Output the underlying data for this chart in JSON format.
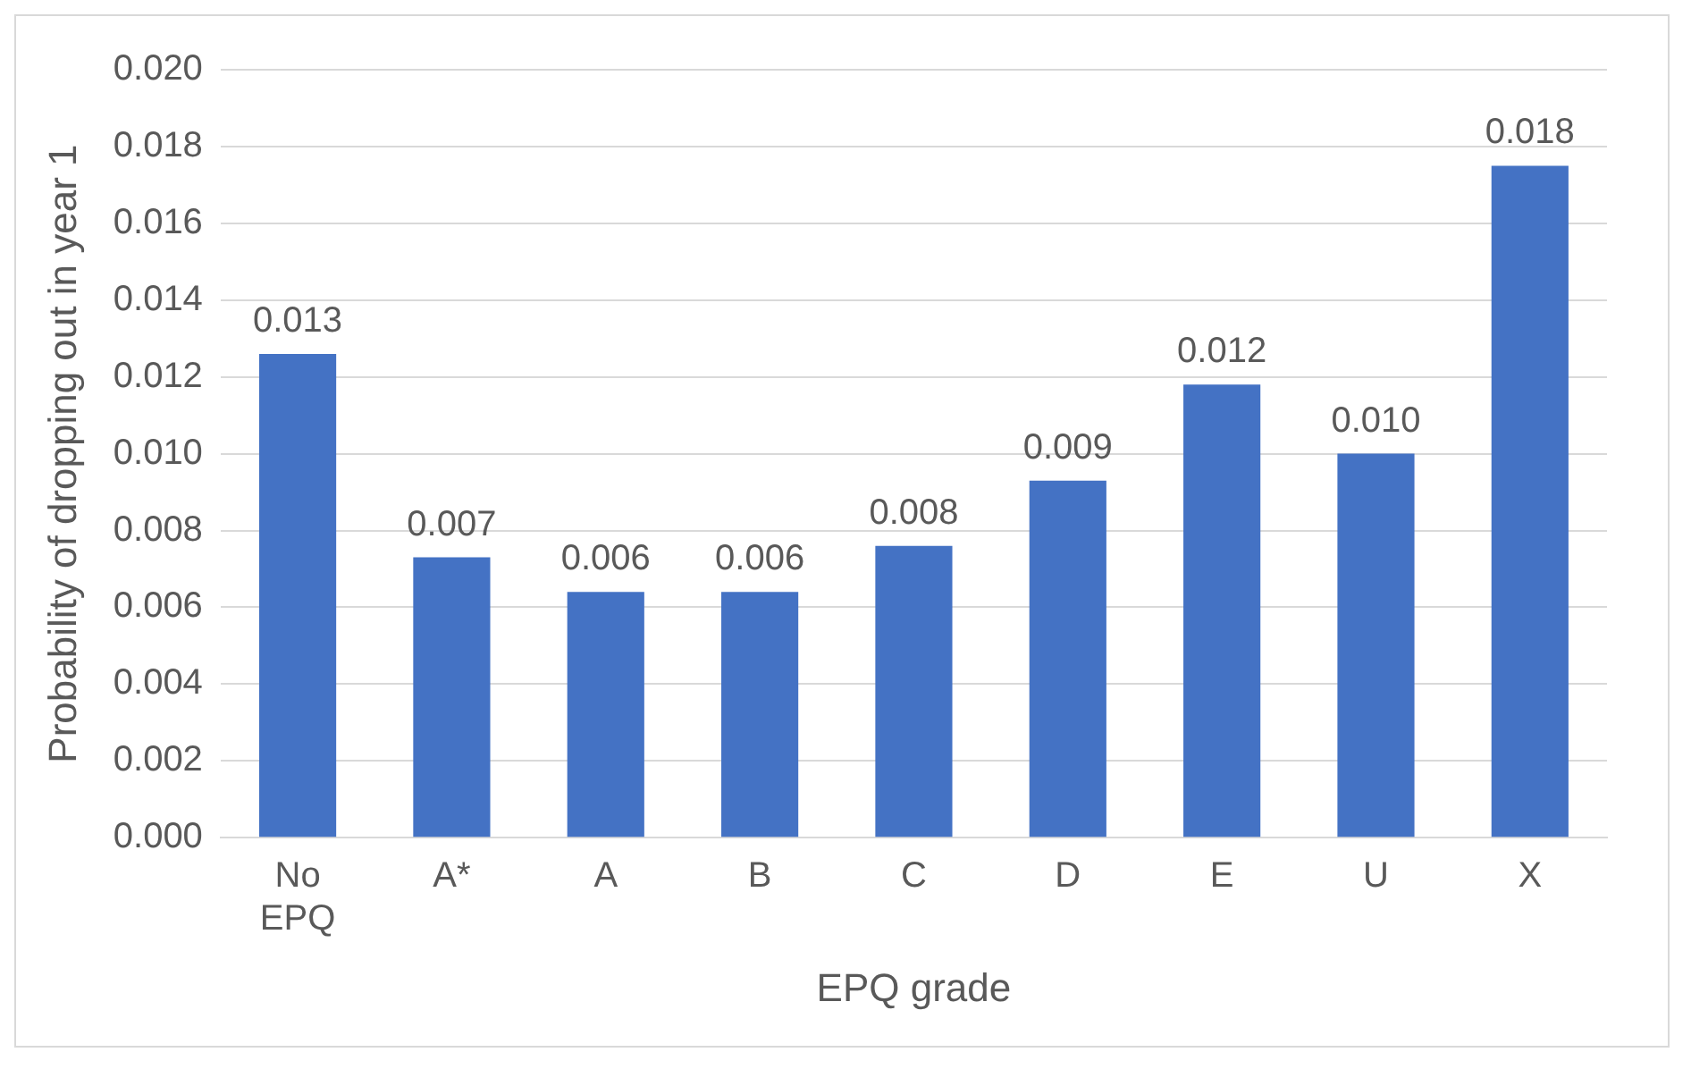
{
  "chart_data": {
    "type": "bar",
    "xlabel": "EPQ grade",
    "ylabel": "Probability of dropping out in year 1",
    "categories": [
      "No EPQ",
      "A*",
      "A",
      "B",
      "C",
      "D",
      "E",
      "U",
      "X"
    ],
    "series": [
      {
        "color": "#4472c4",
        "values": [
          0.0126,
          0.0073,
          0.0064,
          0.0064,
          0.0076,
          0.0093,
          0.0118,
          0.01,
          0.0175
        ],
        "value_labels": [
          "0.013",
          "0.007",
          "0.006",
          "0.006",
          "0.008",
          "0.009",
          "0.012",
          "0.010",
          "0.018"
        ]
      }
    ],
    "ylim": [
      0,
      0.02
    ],
    "yticks": [
      {
        "value": 0,
        "label": "0.000"
      },
      {
        "value": 0.002,
        "label": "0.002"
      },
      {
        "value": 0.004,
        "label": "0.004"
      },
      {
        "value": 0.006,
        "label": "0.006"
      },
      {
        "value": 0.008,
        "label": "0.008"
      },
      {
        "value": 0.01,
        "label": "0.010"
      },
      {
        "value": 0.012,
        "label": "0.012"
      },
      {
        "value": 0.014,
        "label": "0.014"
      },
      {
        "value": 0.016,
        "label": "0.016"
      },
      {
        "value": 0.018,
        "label": "0.018"
      },
      {
        "value": 0.02,
        "label": "0.020"
      }
    ],
    "grid": "y",
    "legend": false
  }
}
